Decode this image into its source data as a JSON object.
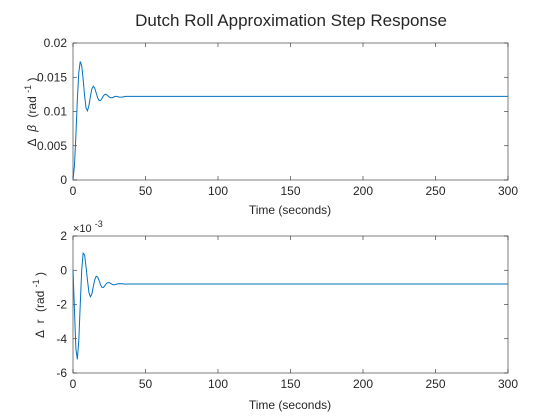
{
  "figure": {
    "title": "Dutch Roll Approximation Step Response"
  },
  "chart_data": [
    {
      "type": "line",
      "xlabel": "Time (seconds)",
      "ylabel_parts": [
        "Δ",
        "β",
        "(rad",
        "-1",
        ")"
      ],
      "xlim": [
        0,
        300
      ],
      "ylim": [
        0,
        0.02
      ],
      "xticks": [
        "0",
        "50",
        "100",
        "150",
        "200",
        "250",
        "300"
      ],
      "yticks": [
        "0",
        "0.005",
        "0.01",
        "0.015",
        "0.02"
      ],
      "ytick_values": [
        0,
        0.005,
        0.01,
        0.015,
        0.02
      ],
      "grid": false,
      "line_color": "#0072bd",
      "series": [
        {
          "x": [
            0,
            1,
            2,
            3,
            4,
            5,
            6,
            7,
            8,
            9,
            10,
            11,
            12,
            13,
            14,
            15,
            16,
            17,
            18,
            19,
            20,
            21,
            22,
            23,
            24,
            25,
            26,
            27,
            28,
            29,
            30,
            32,
            34,
            36,
            38,
            40,
            45,
            50,
            60,
            80,
            100,
            150,
            200,
            250,
            300
          ],
          "y": [
            0,
            0.0021,
            0.0065,
            0.0118,
            0.0157,
            0.0173,
            0.0167,
            0.0147,
            0.0123,
            0.0105,
            0.0101,
            0.0109,
            0.0122,
            0.0133,
            0.0137,
            0.0134,
            0.0127,
            0.012,
            0.0116,
            0.0116,
            0.0119,
            0.0123,
            0.0125,
            0.0125,
            0.0123,
            0.0121,
            0.012,
            0.012,
            0.0121,
            0.0122,
            0.0122,
            0.0121,
            0.0121,
            0.0122,
            0.0122,
            0.0122,
            0.0122,
            0.0122,
            0.0122,
            0.0122,
            0.0122,
            0.0122,
            0.0122,
            0.0122,
            0.0122
          ]
        }
      ]
    },
    {
      "type": "line",
      "xlabel": "Time (seconds)",
      "ylabel_parts": [
        "Δ",
        "r",
        "(rad",
        "-1",
        ")"
      ],
      "exponent": [
        "×10",
        "-3"
      ],
      "xlim": [
        0,
        300
      ],
      "ylim": [
        -6,
        2
      ],
      "xticks": [
        "0",
        "50",
        "100",
        "150",
        "200",
        "250",
        "300"
      ],
      "yticks": [
        "-6",
        "-4",
        "-2",
        "0",
        "2"
      ],
      "ytick_values": [
        -6,
        -4,
        -2,
        0,
        2
      ],
      "grid": false,
      "line_color": "#0072bd",
      "series": [
        {
          "x": [
            0,
            1,
            2,
            3,
            4,
            5,
            6,
            7,
            8,
            9,
            10,
            11,
            12,
            13,
            14,
            15,
            16,
            17,
            18,
            19,
            20,
            21,
            22,
            23,
            24,
            25,
            26,
            27,
            28,
            29,
            30,
            32,
            34,
            36,
            38,
            40,
            45,
            50,
            60,
            80,
            100,
            150,
            200,
            250,
            300
          ],
          "y": [
            0,
            -2.3,
            -4.6,
            -5.2,
            -4.1,
            -2.0,
            0.0,
            1.0,
            0.9,
            0.2,
            -0.6,
            -1.3,
            -1.55,
            -1.4,
            -0.95,
            -0.55,
            -0.35,
            -0.4,
            -0.6,
            -0.85,
            -1.0,
            -1.0,
            -0.9,
            -0.78,
            -0.72,
            -0.72,
            -0.77,
            -0.82,
            -0.85,
            -0.84,
            -0.81,
            -0.78,
            -0.79,
            -0.81,
            -0.8,
            -0.8,
            -0.8,
            -0.8,
            -0.8,
            -0.8,
            -0.8,
            -0.8,
            -0.8,
            -0.8,
            -0.8
          ]
        }
      ]
    }
  ]
}
